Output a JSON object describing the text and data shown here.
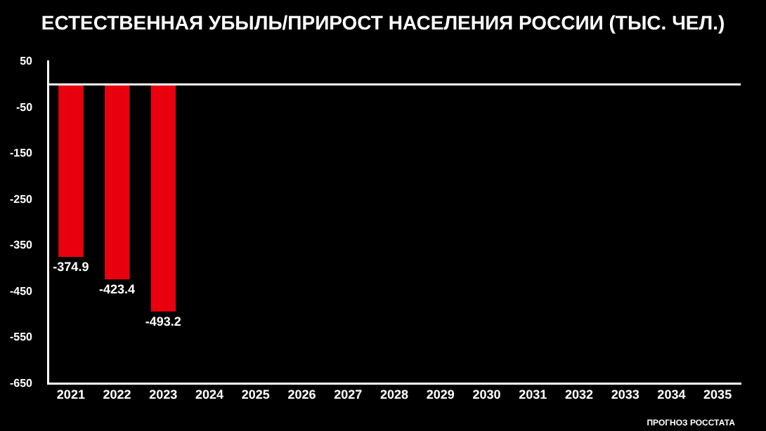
{
  "chart_data": {
    "type": "bar",
    "title": "ЕСТЕСТВЕННАЯ УБЫЛЬ/ПРИРОСТ НАСЕЛЕНИЯ РОССИИ (ТЫС. ЧЕЛ.)",
    "categories": [
      "2021",
      "2022",
      "2023",
      "2024",
      "2025",
      "2026",
      "2027",
      "2028",
      "2029",
      "2030",
      "2031",
      "2032",
      "2033",
      "2034",
      "2035"
    ],
    "values": [
      -374.9,
      -423.4,
      -493.2,
      null,
      null,
      null,
      null,
      null,
      null,
      null,
      null,
      null,
      null,
      null,
      null
    ],
    "color": "#e8000f",
    "ylim": [
      -650,
      50
    ],
    "yticks": [
      50,
      -50,
      -150,
      -250,
      -350,
      -450,
      -550,
      -650
    ],
    "grid": false,
    "data_labels": true,
    "legend": false,
    "annotations": [
      "ПРОГНОЗ РОССТАТА"
    ]
  }
}
